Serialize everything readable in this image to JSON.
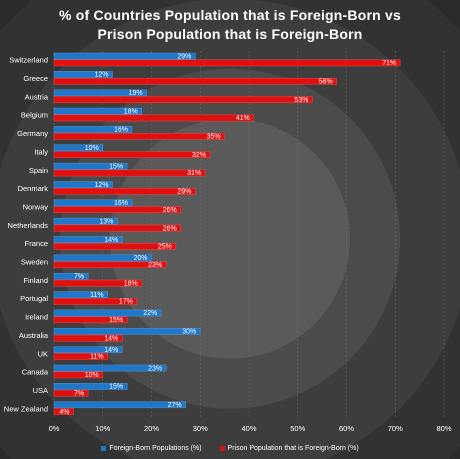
{
  "title_line1": "% of Countries Population that is Foreign-Born vs",
  "title_line2": "Prison Population that is Foreign-Born",
  "colors": {
    "foreign_born": "#1f77c9",
    "prison": "#e01010"
  },
  "chart_data": {
    "type": "bar",
    "orientation": "horizontal",
    "title": "% of Countries Population that is Foreign-Born vs Prison Population that is Foreign-Born",
    "categories": [
      "Switzerland",
      "Greece",
      "Austria",
      "Belgium",
      "Germany",
      "Italy",
      "Spain",
      "Denmark",
      "Norway",
      "Netherlands",
      "France",
      "Sweden",
      "Finland",
      "Portugal",
      "Ireland",
      "Australia",
      "UK",
      "Canada",
      "USA",
      "New Zealand"
    ],
    "series": [
      {
        "name": "Foreign-Born Populations (%)",
        "values": [
          29,
          12,
          19,
          18,
          16,
          10,
          15,
          12,
          16,
          13,
          14,
          20,
          7,
          11,
          22,
          30,
          14,
          23,
          15,
          27
        ]
      },
      {
        "name": "Prison Population that is Foreign-Born (%)",
        "values": [
          71,
          58,
          53,
          41,
          35,
          32,
          31,
          29,
          26,
          26,
          25,
          23,
          18,
          17,
          15,
          14,
          11,
          10,
          7,
          4
        ]
      }
    ],
    "data_labels": [
      [
        "29%",
        "12%",
        "19%",
        "18%",
        "16%",
        "10%",
        "15%",
        "12%",
        "16%",
        "13%",
        "14%",
        "20%",
        "7%",
        "11%",
        "22%",
        "30%",
        "14%",
        "23%",
        "15%",
        "27%"
      ],
      [
        "71%",
        "58%",
        "53%",
        "41%",
        "35%",
        "32%",
        "31%",
        "29%",
        "26%",
        "26%",
        "25%",
        "23%",
        "18%",
        "17%",
        "15%",
        "14%",
        "11%",
        "10%",
        "7%",
        "4%"
      ]
    ],
    "x_ticks": [
      "0%",
      "10%",
      "20%",
      "30%",
      "40%",
      "50%",
      "60%",
      "70%",
      "80%"
    ],
    "xlim": [
      0,
      80
    ],
    "grid": true,
    "legend_position": "bottom"
  }
}
